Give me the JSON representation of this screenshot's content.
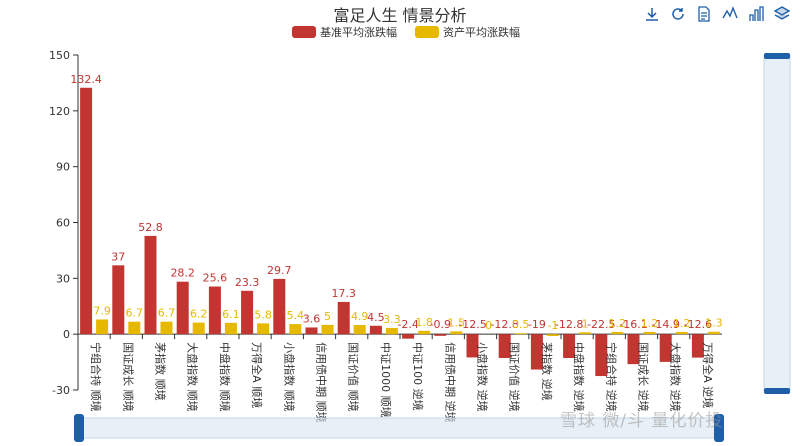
{
  "title": "富足人生 情景分析",
  "toolbox": [
    "download-icon",
    "refresh-icon",
    "data-view-icon",
    "line-chart-icon",
    "bar-chart-icon",
    "stack-icon"
  ],
  "watermark": "雪球 微/斗 量化价投",
  "colors": {
    "base": "#c23531",
    "asset": "#e6b800",
    "zoom": "#1f5fa8"
  },
  "chart_data": {
    "type": "bar",
    "title": "富足人生 情景分析",
    "legend_position": "top-center",
    "ylim": [
      -30,
      150
    ],
    "yticks": [
      -30,
      0,
      30,
      60,
      90,
      120,
      150
    ],
    "categories": [
      "宁组合持 顺境",
      "国证成长 顺境",
      "茅指数 顺境",
      "大盘指数 顺境",
      "中盘指数 顺境",
      "万得全A 顺境",
      "小盘指数 顺境",
      "信用债中期 顺境",
      "国证价值 顺境",
      "中证1000 顺境",
      "中证100 逆境",
      "信用债中期 逆境",
      "小盘指数 逆境",
      "国证价值 逆境",
      "茅指数 逆境",
      "中盘指数 逆境",
      "宁组合持 逆境",
      "国证成长 逆境",
      "大盘指数 逆境",
      "万得全A 逆境"
    ],
    "series": [
      {
        "name": "基准平均涨跌幅",
        "values": [
          132.4,
          37,
          52.8,
          28.2,
          25.6,
          23.3,
          29.7,
          3.6,
          17.3,
          4.5,
          -2.4,
          -0.9,
          -12.5,
          -12.8,
          -19,
          -12.8,
          -22.5,
          -16.1,
          -14.9,
          -12.6
        ],
        "labels": [
          "132.4",
          "37",
          "52.8",
          "28.2",
          "25.6",
          "23.3",
          "29.7",
          "3.6",
          "17.3",
          "4.5",
          "-2.4",
          "-0.9",
          "-12.5",
          "-12.8",
          "-19",
          "-12.8",
          "-22.5",
          "-16.1",
          "-14.9",
          "-12.6"
        ]
      },
      {
        "name": "资产平均涨跌幅",
        "values": [
          7.9,
          6.7,
          6.7,
          6.2,
          6.1,
          5.8,
          5.4,
          5,
          4.9,
          3.3,
          1.8,
          1.5,
          0,
          0.5,
          -1,
          1,
          1.2,
          1.2,
          1.2,
          1.3
        ],
        "labels": [
          "7.9",
          "6.7",
          "6.7",
          "6.2",
          "6.1",
          "5.8",
          "5.4",
          "5",
          "4.9",
          "3.3",
          "1.8",
          "1.5",
          "0",
          "0.5",
          "-1",
          "1",
          "1.2",
          "1.2",
          "1.2",
          "1.3"
        ]
      }
    ]
  }
}
